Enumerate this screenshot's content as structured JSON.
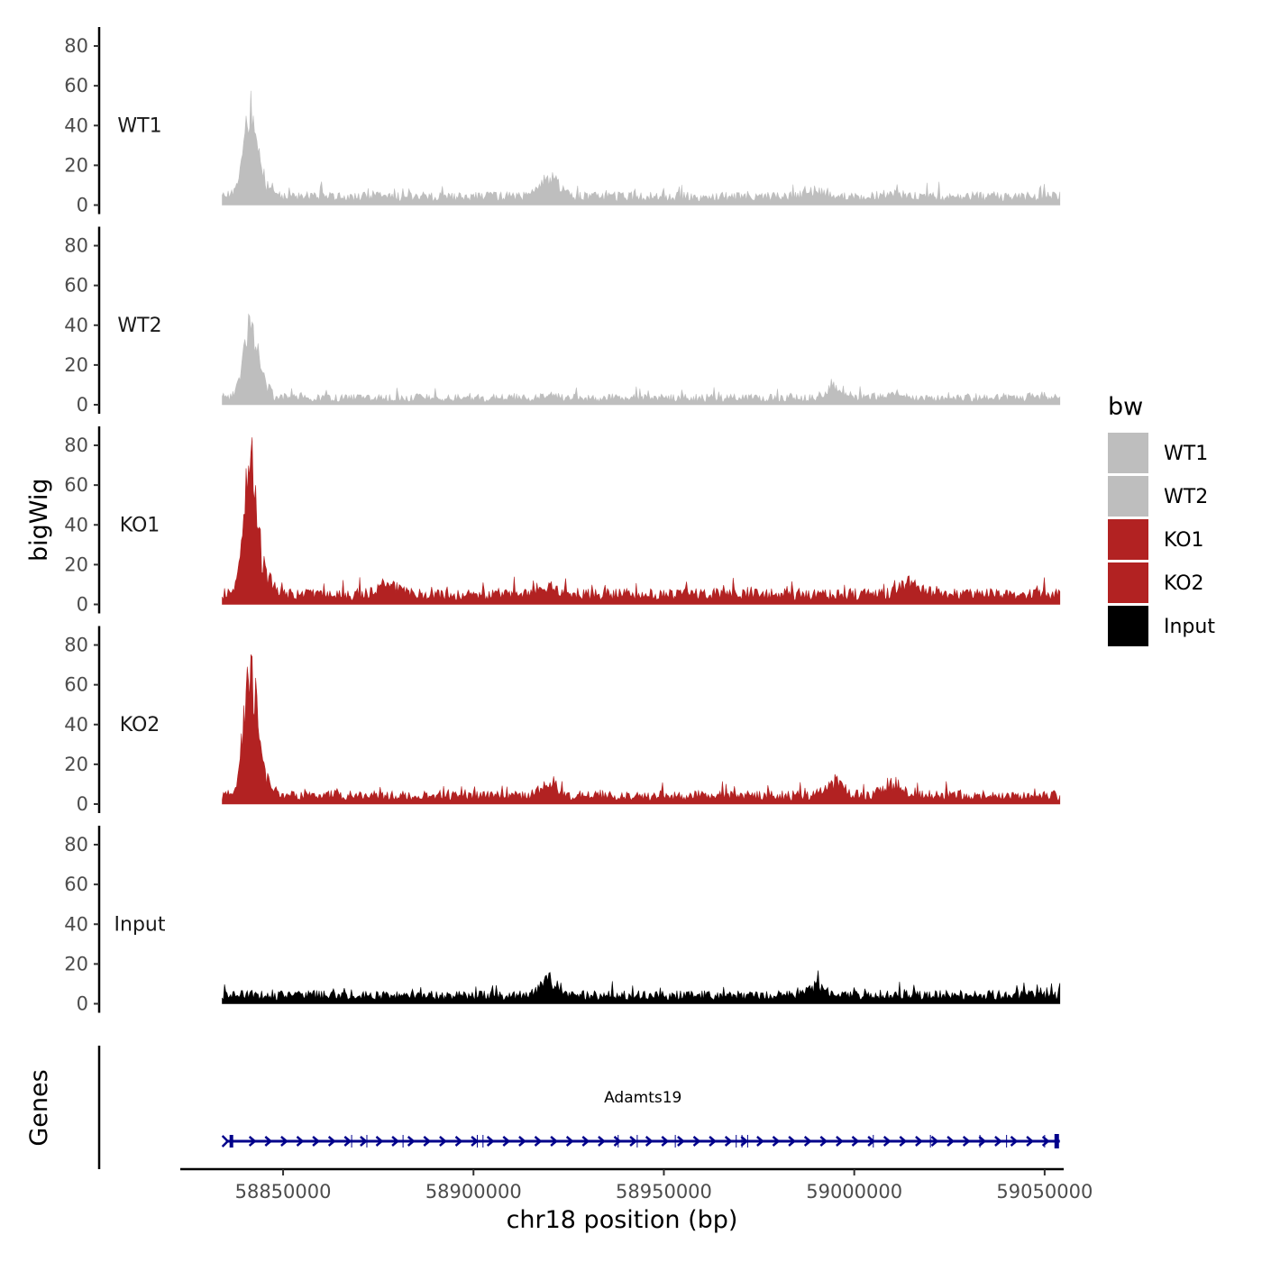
{
  "chart_data": {
    "type": "area",
    "title": "",
    "ylabel": "bigWig",
    "xlabel": "chr18 position (bp)",
    "genes_label": "Genes",
    "xlim": [
      58823000,
      59055000
    ],
    "data_range": [
      58834000,
      59054000
    ],
    "ylim": [
      0,
      85
    ],
    "y_ticks": [
      "0",
      "20",
      "40",
      "60",
      "80"
    ],
    "y_tick_values": [
      0,
      20,
      40,
      60,
      80
    ],
    "x_ticks": [
      "58850000",
      "58900000",
      "58950000",
      "59000000",
      "59050000"
    ],
    "x_tick_values": [
      58850000,
      58900000,
      58950000,
      59000000,
      59050000
    ],
    "colors": {
      "WT": "#bebebe",
      "KO": "#b22222",
      "Input": "#000000",
      "gene": "#00008b"
    },
    "tracks": [
      {
        "name": "WT1",
        "color": "#bebebe",
        "base": 5,
        "peak": 52,
        "broad_boost": [
          [
            58920000,
            12
          ],
          [
            58990000,
            3
          ],
          [
            59010000,
            2
          ]
        ]
      },
      {
        "name": "WT2",
        "color": "#bebebe",
        "base": 4,
        "peak": 49,
        "broad_boost": [
          [
            58920000,
            2
          ],
          [
            58995000,
            6
          ],
          [
            59010000,
            3
          ]
        ]
      },
      {
        "name": "KO1",
        "color": "#b22222",
        "base": 6,
        "peak": 83,
        "broad_boost": [
          [
            58920000,
            4
          ],
          [
            59015000,
            8
          ],
          [
            58878000,
            6
          ]
        ]
      },
      {
        "name": "KO2",
        "color": "#b22222",
        "base": 5,
        "peak": 80,
        "broad_boost": [
          [
            58920000,
            6
          ],
          [
            58995000,
            8
          ],
          [
            59010000,
            8
          ]
        ]
      },
      {
        "name": "Input",
        "color": "#000000",
        "base": 5,
        "peak": 0,
        "broad_boost": [
          [
            58920000,
            9
          ],
          [
            58990000,
            7
          ]
        ]
      }
    ],
    "legend": {
      "title": "bw",
      "entries": [
        {
          "label": "WT1",
          "color": "#bebebe"
        },
        {
          "label": "WT2",
          "color": "#bebebe"
        },
        {
          "label": "KO1",
          "color": "#b22222"
        },
        {
          "label": "KO2",
          "color": "#b22222"
        },
        {
          "label": "Input",
          "color": "#000000"
        }
      ]
    },
    "gene": {
      "name": "Adamts19",
      "start": 58835000,
      "end": 59054000,
      "strand": "+"
    }
  }
}
